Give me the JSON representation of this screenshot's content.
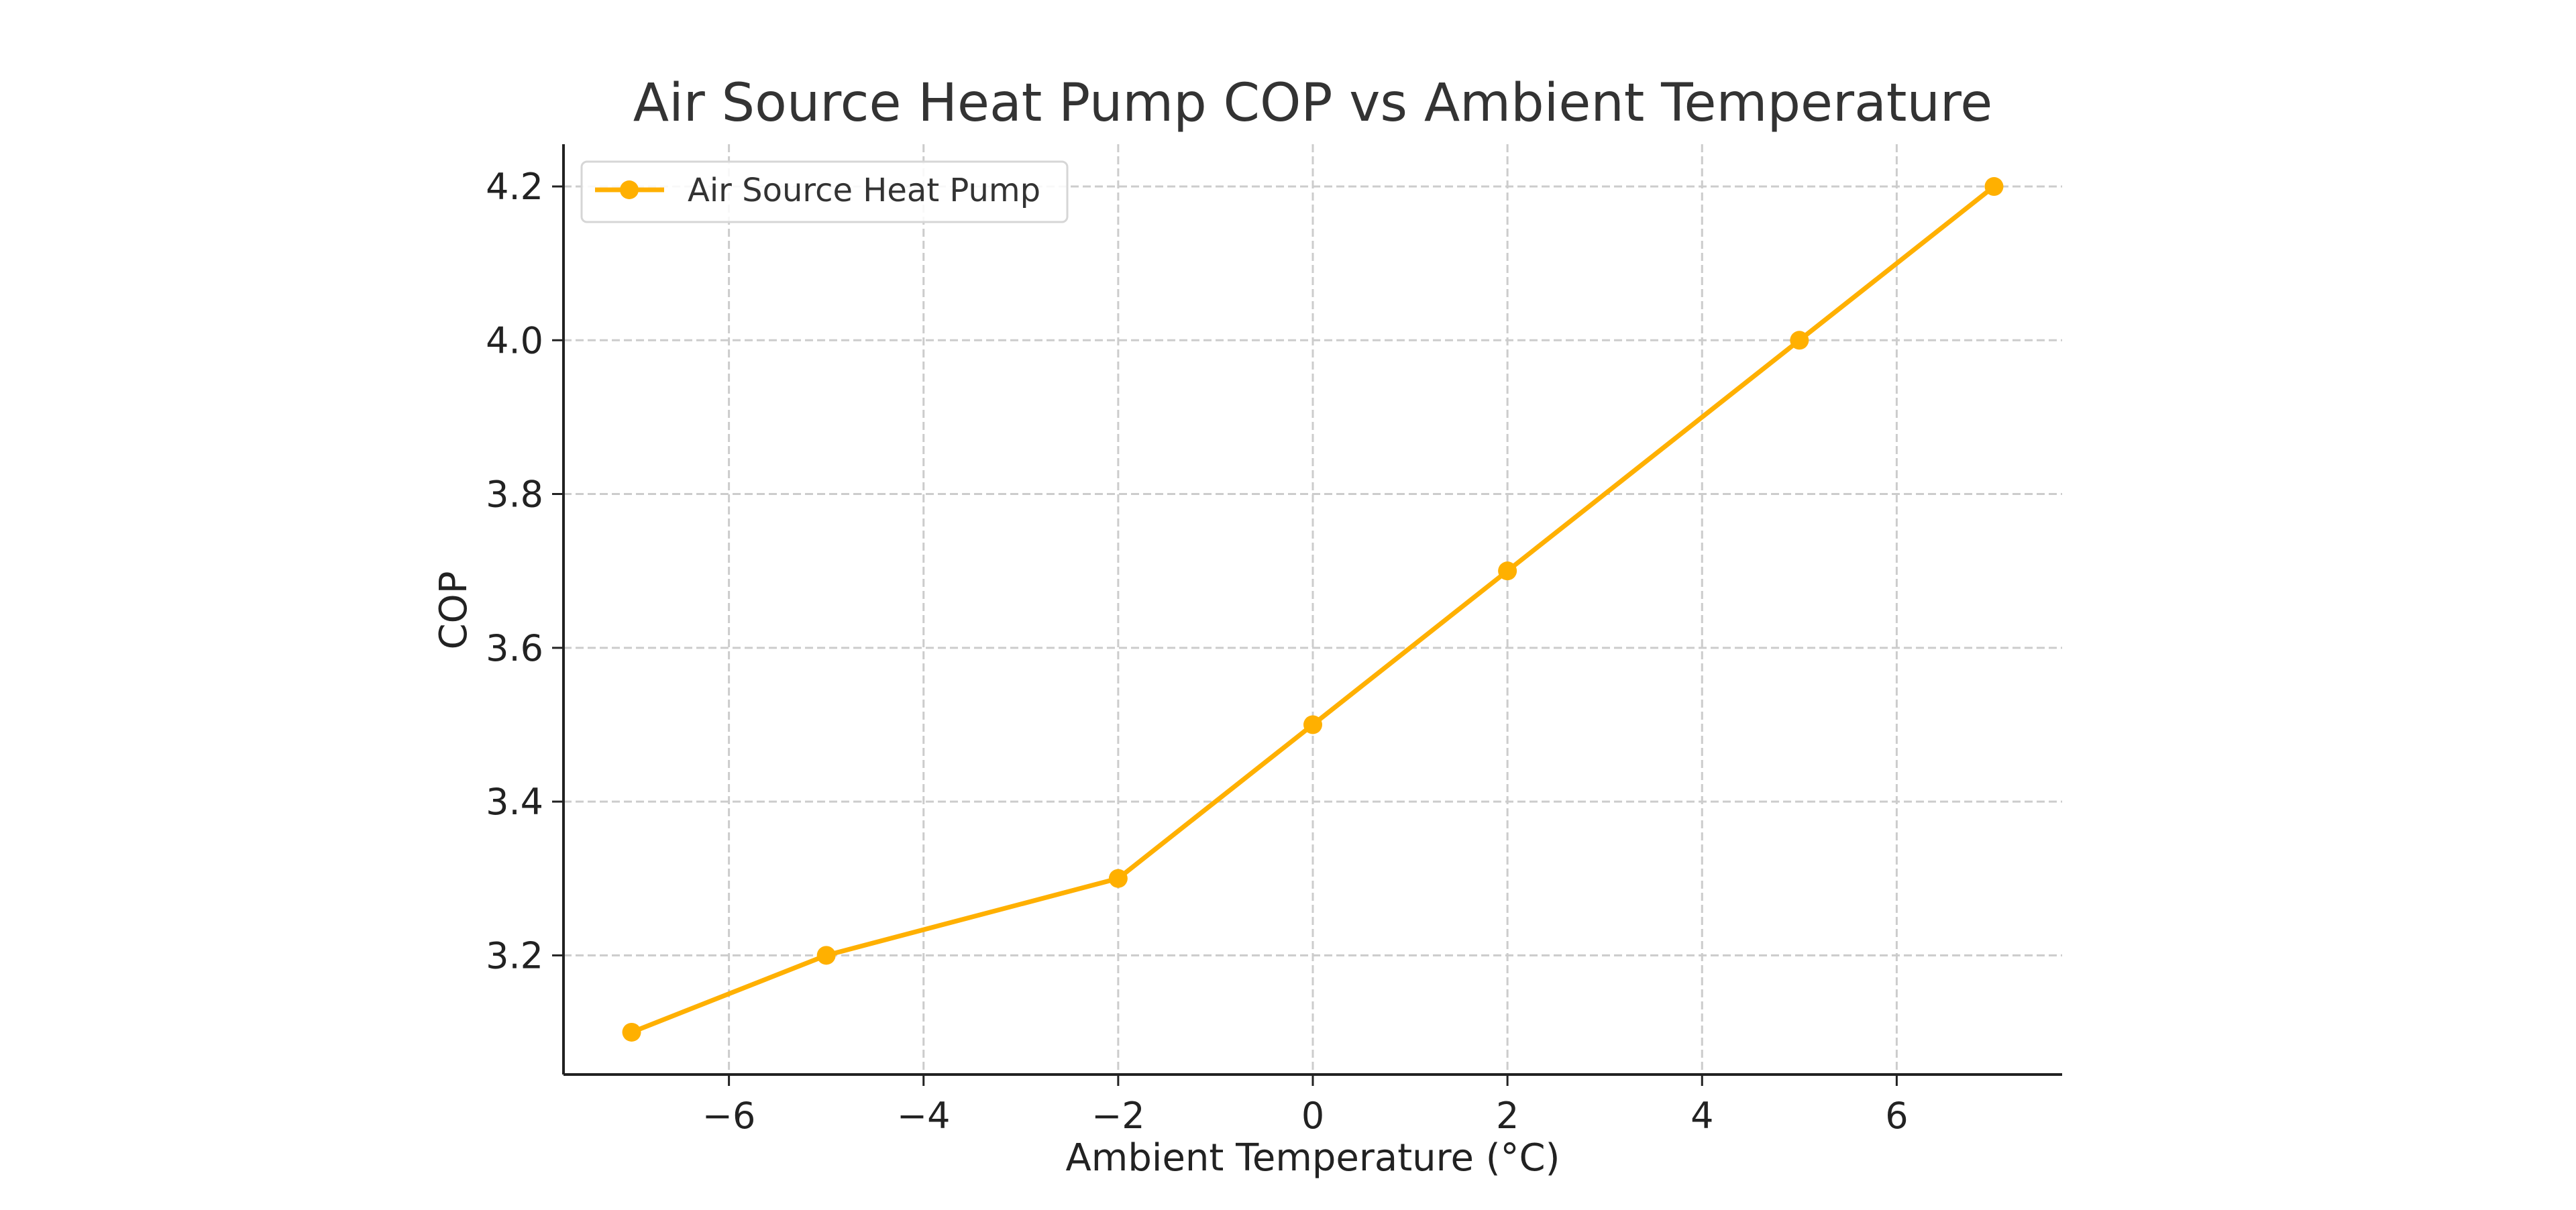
{
  "chart_data": {
    "type": "line",
    "title": "Air Source Heat Pump COP vs Ambient Temperature",
    "xlabel": "Ambient Temperature (°C)",
    "ylabel": "COP",
    "xlim": [
      -7.7,
      7.7
    ],
    "ylim": [
      3.045,
      4.255
    ],
    "xticks": [
      -6,
      -4,
      -2,
      0,
      2,
      4,
      6
    ],
    "xtick_labels": [
      "−6",
      "−4",
      "−2",
      "0",
      "2",
      "4",
      "6"
    ],
    "yticks": [
      3.2,
      3.4,
      3.6,
      3.8,
      4.0,
      4.2
    ],
    "ytick_labels": [
      "3.2",
      "3.4",
      "3.6",
      "3.8",
      "4.0",
      "4.2"
    ],
    "grid": true,
    "legend_placement": "upper-left",
    "series": [
      {
        "name": "Air Source Heat Pump",
        "color": "#FFB000",
        "marker": "circle",
        "x": [
          -7,
          -5,
          -2,
          0,
          2,
          5,
          7
        ],
        "y": [
          3.1,
          3.2,
          3.3,
          3.5,
          3.7,
          4.0,
          4.2
        ]
      }
    ]
  }
}
